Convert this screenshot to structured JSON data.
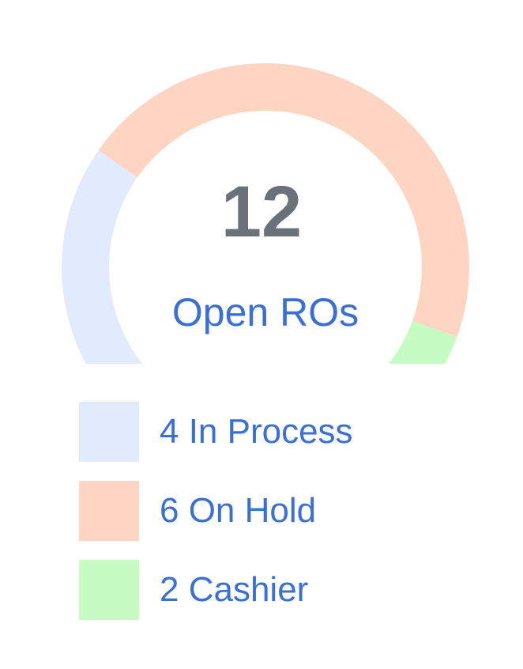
{
  "chart_data": {
    "type": "pie",
    "style": "semi-donut gauge",
    "total": "12",
    "caption": "Open ROs",
    "series": [
      {
        "name": "In Process",
        "value": 4,
        "color": "#e2eafe",
        "legend": "4 In Process"
      },
      {
        "name": "On Hold",
        "value": 6,
        "color": "#fed5c2",
        "legend": "6 On Hold"
      },
      {
        "name": "Cashier",
        "value": 2,
        "color": "#c6fbc2",
        "legend": "2 Cashier"
      }
    ],
    "legend_position": "bottom"
  }
}
